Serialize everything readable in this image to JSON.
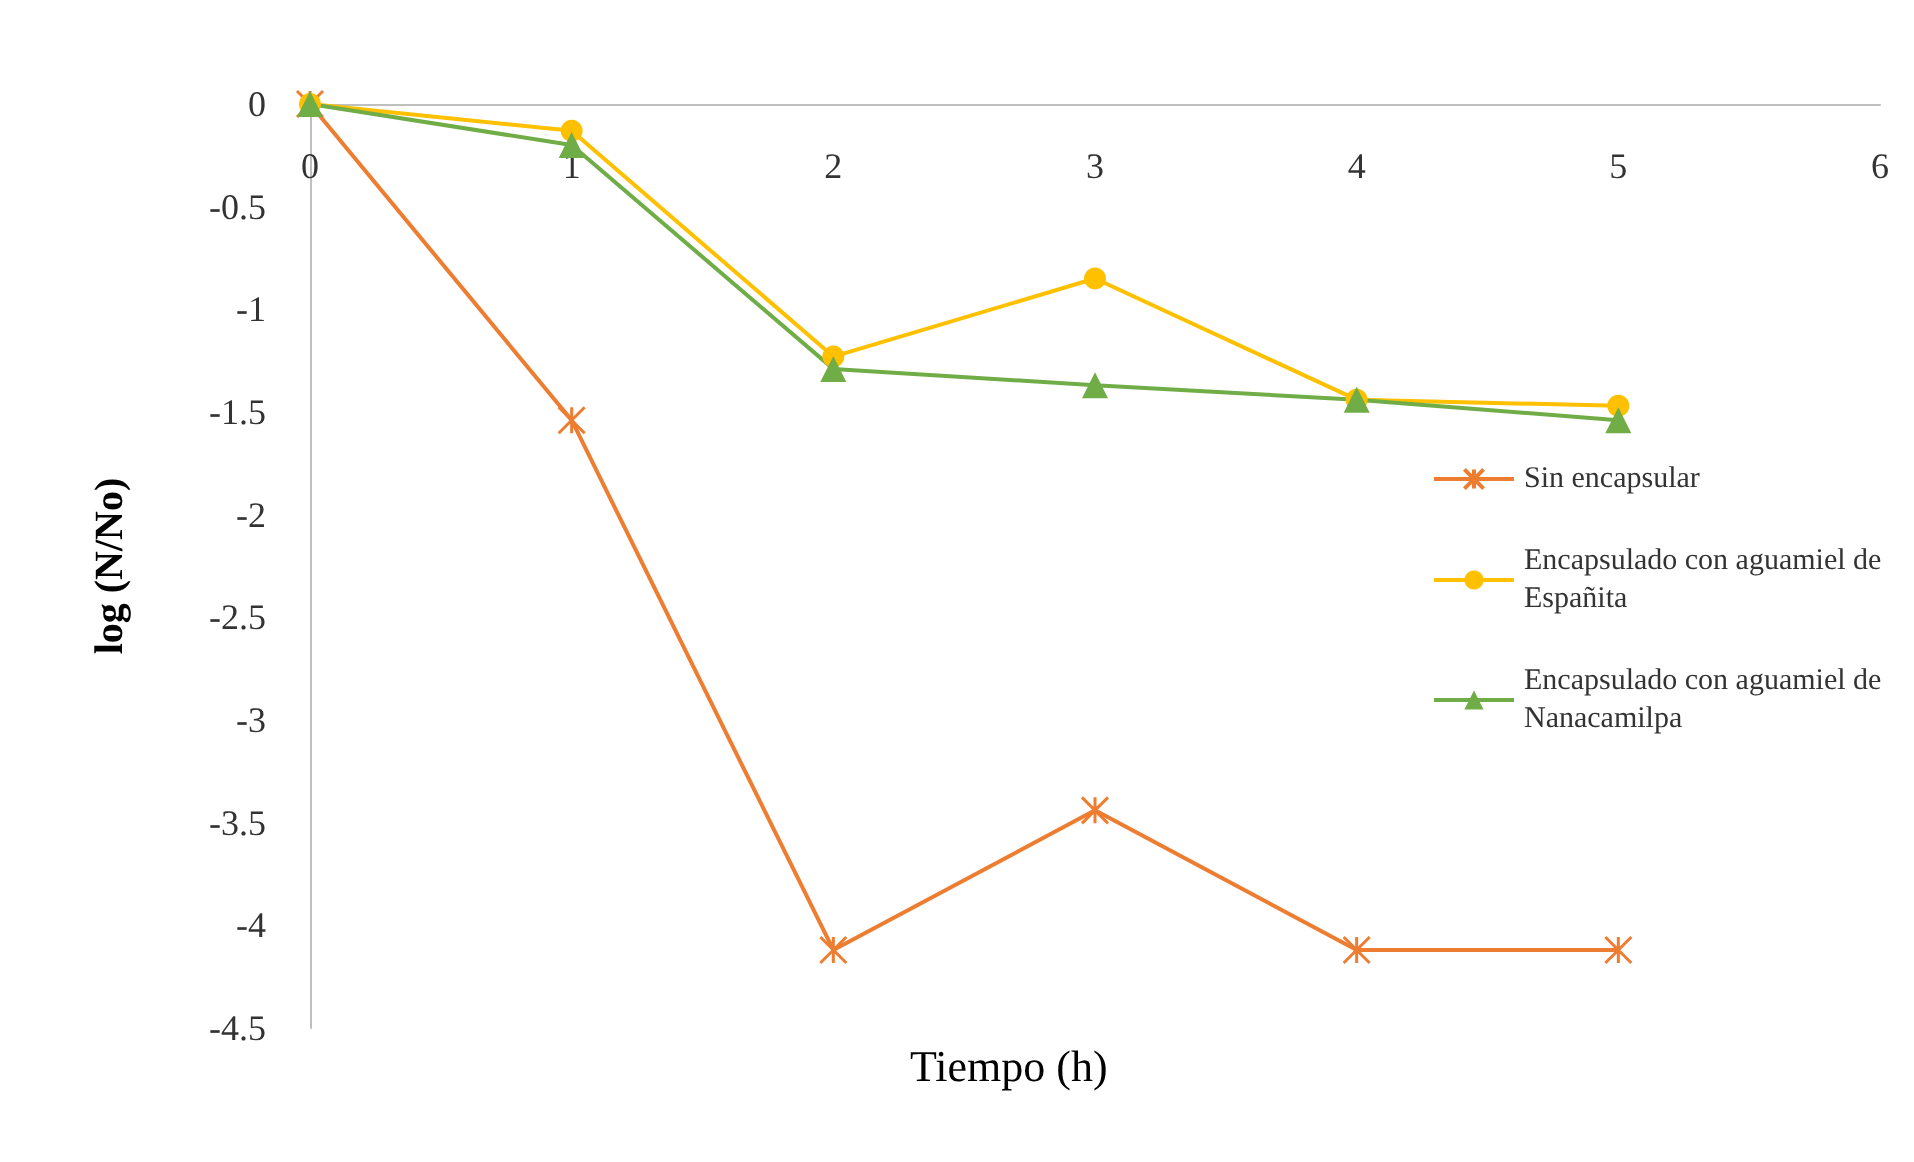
{
  "chart_data": {
    "type": "line",
    "xlabel": "Tiempo (h)",
    "ylabel": "log (N/No)",
    "x": [
      0,
      1,
      2,
      3,
      4,
      5
    ],
    "series": [
      {
        "name": "Sin encapsular",
        "color": "#ed7d31",
        "marker": "cross",
        "values": [
          0,
          -1.54,
          -4.12,
          -3.44,
          -4.12,
          -4.12
        ]
      },
      {
        "name": "Encapsulado con aguamiel de Españita",
        "color": "#ffc000",
        "marker": "circle",
        "values": [
          0,
          -0.13,
          -1.23,
          -0.85,
          -1.44,
          -1.47
        ]
      },
      {
        "name": "Encapsulado con aguamiel de Nanacamilpa",
        "color": "#70ad47",
        "marker": "triangle",
        "values": [
          0,
          -0.2,
          -1.29,
          -1.37,
          -1.44,
          -1.54
        ]
      }
    ],
    "xlim": [
      0,
      6
    ],
    "xticks": [
      0,
      1,
      2,
      3,
      4,
      5,
      6
    ],
    "ylim": [
      -4.5,
      0
    ],
    "yticks": [
      0,
      -0.5,
      -1,
      -1.5,
      -2,
      -2.5,
      -3,
      -3.5,
      -4,
      -4.5
    ],
    "grid": false,
    "legend": "right"
  }
}
